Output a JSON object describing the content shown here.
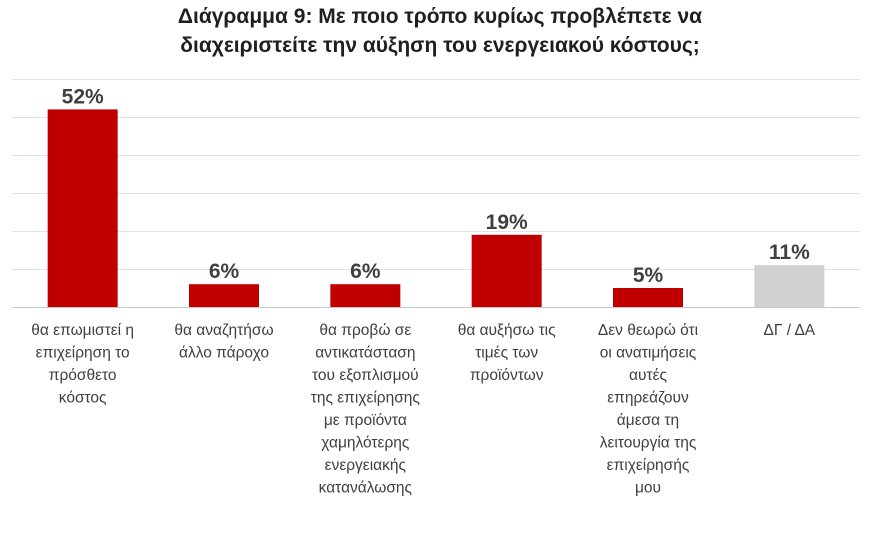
{
  "chart_data": {
    "type": "bar",
    "title_lines": [
      "Διάγραμμα 9: Με ποιο τρόπο κυρίως προβλέπετε να",
      "διαχειριστείτε την αύξηση του ενεργειακού κόστους;"
    ],
    "categories": [
      [
        "θα επωμιστεί η",
        "επιχείρηση το",
        "πρόσθετο",
        "κόστος"
      ],
      [
        "θα αναζητήσω",
        "άλλο πάροχο"
      ],
      [
        "θα προβώ σε",
        "αντικατάσταση",
        "του εξοπλισμού",
        "της επιχείρησης",
        "με προϊόντα",
        "χαμηλότερης",
        "ενεργειακής",
        "κατανάλωσης"
      ],
      [
        "θα αυξήσω τις",
        "τιμές των",
        "προϊόντων"
      ],
      [
        "Δεν θεωρώ ότι",
        "οι ανατιμήσεις",
        "αυτές",
        "επηρεάζουν",
        "άμεσα τη",
        "λειτουργία της",
        "επιχείρησής",
        "μου"
      ],
      [
        "ΔΓ / ΔΑ"
      ]
    ],
    "values": [
      52,
      6,
      6,
      19,
      5,
      11
    ],
    "value_labels": [
      "52%",
      "6%",
      "6%",
      "19%",
      "5%",
      "11%"
    ],
    "bar_colors": [
      "#c00000",
      "#c00000",
      "#c00000",
      "#c00000",
      "#c00000",
      "#d0d0d0"
    ],
    "ylim": [
      0,
      60
    ],
    "gridline_step": 10,
    "grid": true,
    "xlabel": "",
    "ylabel": ""
  }
}
